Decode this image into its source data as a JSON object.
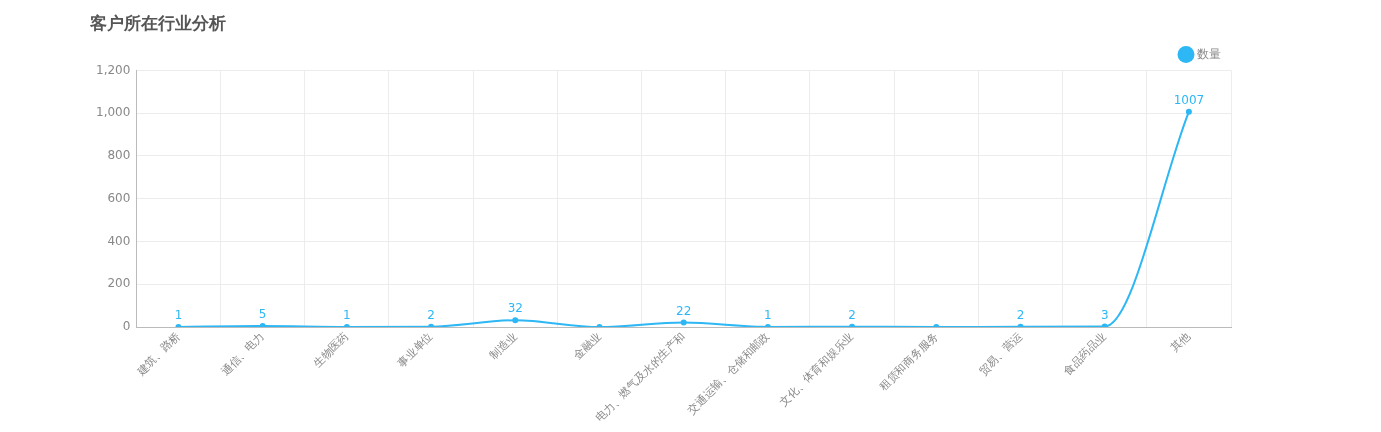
{
  "chart_data": {
    "type": "line",
    "title": "客户所在行业分析",
    "categories": [
      "建筑、路桥",
      "通信、电力",
      "生物医药",
      "事业单位",
      "制造业",
      "金融业",
      "电力、燃气及水的生产和",
      "交通运输、仓储和邮政",
      "文化、体育和娱乐业",
      "租赁和商务服务",
      "贸易、营运",
      "食品药品业",
      "其他"
    ],
    "series": [
      {
        "name": "数量",
        "color": "#2db7f5",
        "values": [
          1,
          5,
          1,
          2,
          32,
          0,
          22,
          1,
          2,
          0,
          2,
          3,
          1007
        ],
        "value_labels": [
          "1",
          "5",
          "1",
          "2",
          "32",
          null,
          "22",
          "1",
          "2",
          null,
          "2",
          "3",
          "1007"
        ]
      }
    ],
    "ylim": [
      0,
      1200
    ],
    "yticks": [
      0,
      {
        "value": 200,
        "label": "200"
      },
      {
        "value": 400,
        "label": "400"
      },
      {
        "value": 600,
        "label": "600"
      },
      {
        "value": 800,
        "label": "800"
      },
      {
        "value": 1000,
        "label": "1,000"
      },
      {
        "value": 1200,
        "label": "1,200"
      }
    ],
    "grid": true,
    "legend": "top right",
    "marker": "circle"
  }
}
